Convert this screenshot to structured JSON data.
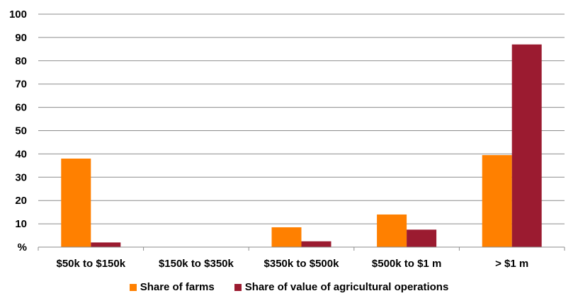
{
  "chart_data": {
    "type": "bar",
    "title": "",
    "xlabel": "",
    "ylabel": "%",
    "ylim": [
      0,
      100
    ],
    "y_ticks": [
      "%",
      "10",
      "20",
      "30",
      "40",
      "50",
      "60",
      "70",
      "80",
      "90",
      "100"
    ],
    "y_tick_values": [
      0,
      10,
      20,
      30,
      40,
      50,
      60,
      70,
      80,
      90,
      100
    ],
    "grid": true,
    "legend_position": "bottom",
    "categories": [
      "$50k to $150k",
      "$150k to $350k",
      "$350k to $500k",
      "$500k to $1 m",
      "> $1 m"
    ],
    "series": [
      {
        "name": "Share of farms",
        "color": "#FF8000",
        "values": [
          38,
          0,
          8.5,
          14,
          39.5
        ]
      },
      {
        "name": "Share of value of agricultural operations",
        "color": "#9B1B30",
        "values": [
          2,
          0,
          2.5,
          7.5,
          87
        ]
      }
    ]
  }
}
